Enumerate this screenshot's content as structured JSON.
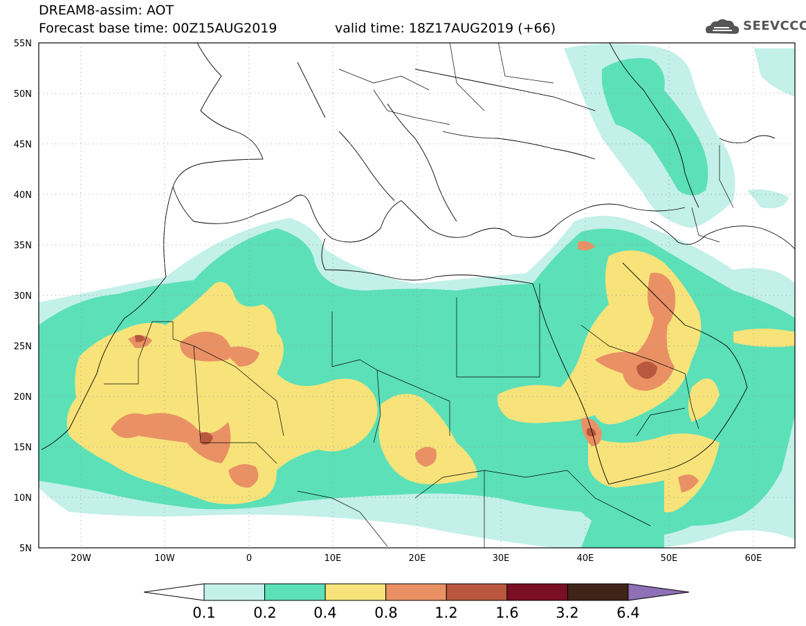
{
  "header": {
    "title_line1": "DREAM8-assim: AOT",
    "title_line2": "Forecast base time: 00Z15AUG2019",
    "valid_time": "valid time: 18Z17AUG2019 (+66)",
    "logo_text": "SEEVCCC"
  },
  "axes": {
    "lat_labels": [
      "55N",
      "50N",
      "45N",
      "40N",
      "35N",
      "30N",
      "25N",
      "20N",
      "15N",
      "10N",
      "5N"
    ],
    "lon_labels": [
      "20W",
      "10W",
      "0",
      "10E",
      "20E",
      "30E",
      "40E",
      "50E",
      "60E"
    ]
  },
  "colorbar": {
    "labels": [
      "0.1",
      "0.2",
      "0.4",
      "0.8",
      "1.2",
      "1.6",
      "3.2",
      "6.4"
    ],
    "colors": [
      "#ffffff",
      "#c3f0e8",
      "#5ce0b8",
      "#f7e37a",
      "#e99165",
      "#b9583f",
      "#7b0f24",
      "#3f2418",
      "#8f6fb5"
    ]
  }
}
